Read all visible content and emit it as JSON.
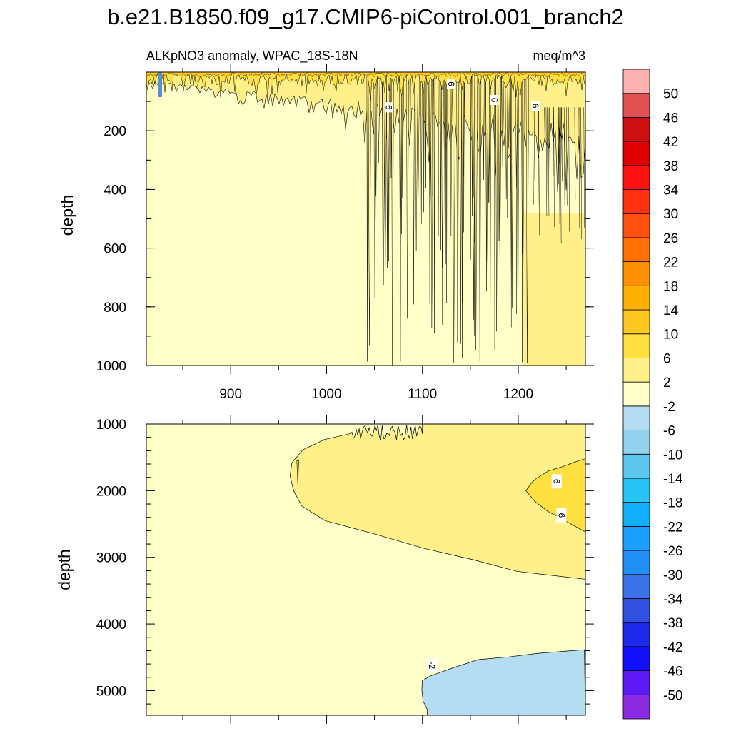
{
  "chart_data": {
    "title": "b.e21.B1850.f09_g17.CMIP6-piControl.001_branch2",
    "subtitle_left": "ALKpNO3 anomaly, WPAC_18S-18N",
    "subtitle_right": "meq/m^3",
    "colorbar": {
      "levels": [
        "-50",
        "-46",
        "-42",
        "-38",
        "-34",
        "-30",
        "-26",
        "-22",
        "-18",
        "-14",
        "-10",
        "-6",
        "-2",
        "2",
        "6",
        "10",
        "14",
        "18",
        "22",
        "26",
        "30",
        "34",
        "38",
        "42",
        "46",
        "50"
      ],
      "colors": [
        "#8a2be2",
        "#5b1af5",
        "#1010ff",
        "#1a2ae8",
        "#3050e0",
        "#3a72ea",
        "#1f8ff5",
        "#1aa0ff",
        "#10b0ff",
        "#24c4f5",
        "#5cc6f0",
        "#92d2ee",
        "#b4ddf2",
        "#ffffc8",
        "#fff08a",
        "#ffe040",
        "#ffc820",
        "#ffb000",
        "#ff9000",
        "#ff7000",
        "#ff5010",
        "#ff3010",
        "#ff1010",
        "#e00000",
        "#cc1010",
        "#e05050",
        "#ffb0b0"
      ]
    },
    "panels": [
      {
        "type": "contour",
        "xlim": [
          812,
          1270
        ],
        "ylim": [
          1000,
          0
        ],
        "x_ticks": [
          "900",
          "1000",
          "1100",
          "1200"
        ],
        "y_ticks": [
          "200",
          "400",
          "600",
          "800",
          "1000"
        ],
        "ylabel": "depth",
        "contour_labels": [
          "6",
          "6",
          "6",
          "6"
        ]
      },
      {
        "type": "contour",
        "xlim": [
          812,
          1270
        ],
        "ylim": [
          5370,
          1000
        ],
        "x_ticks": [],
        "y_ticks": [
          "1000",
          "2000",
          "3000",
          "4000",
          "5000"
        ],
        "ylabel": "depth",
        "contour_labels": [
          "6",
          "6",
          "-2"
        ]
      }
    ]
  }
}
